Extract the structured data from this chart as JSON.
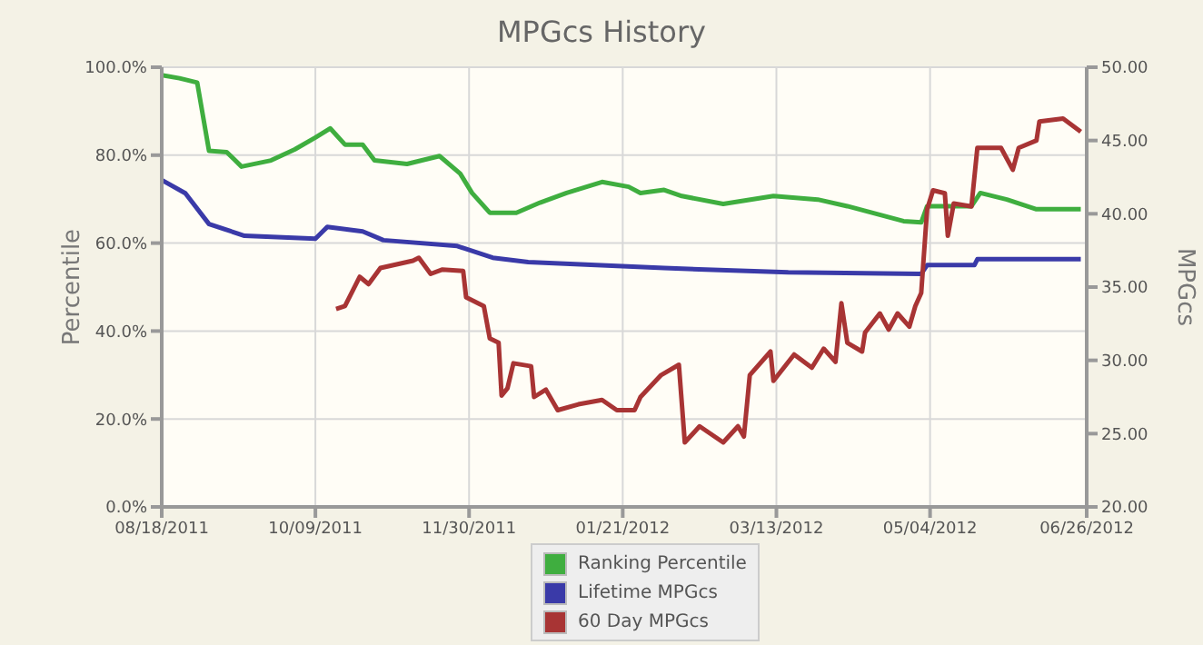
{
  "chart_data": {
    "type": "line",
    "title": "MPGcs History",
    "ylabel": "Percentile",
    "y2label": "MPGcs",
    "xlim": [
      "2011-08-18",
      "2012-06-26"
    ],
    "xticks": [
      {
        "value": "2011-08-18",
        "label": "08/18/2011"
      },
      {
        "value": "2011-10-09",
        "label": "10/09/2011"
      },
      {
        "value": "2011-11-30",
        "label": "11/30/2011"
      },
      {
        "value": "2012-01-21",
        "label": "01/21/2012"
      },
      {
        "value": "2012-03-13",
        "label": "03/13/2012"
      },
      {
        "value": "2012-05-04",
        "label": "05/04/2012"
      },
      {
        "value": "2012-06-26",
        "label": "06/26/2012"
      }
    ],
    "ylim": [
      0,
      100
    ],
    "yticks": [
      {
        "value": 0,
        "label": "0.0%"
      },
      {
        "value": 20,
        "label": "20.0%"
      },
      {
        "value": 40,
        "label": "40.0%"
      },
      {
        "value": 60,
        "label": "60.0%"
      },
      {
        "value": 80,
        "label": "80.0%"
      },
      {
        "value": 100,
        "label": "100.0%"
      }
    ],
    "y2lim": [
      20,
      50
    ],
    "y2ticks": [
      {
        "value": 20,
        "label": "20.00"
      },
      {
        "value": 25,
        "label": "25.00"
      },
      {
        "value": 30,
        "label": "30.00"
      },
      {
        "value": 35,
        "label": "35.00"
      },
      {
        "value": 40,
        "label": "40.00"
      },
      {
        "value": 45,
        "label": "45.00"
      },
      {
        "value": 50,
        "label": "50.00"
      }
    ],
    "grid": true,
    "legend": "bottom",
    "marker": "none",
    "line_style": "solid",
    "series": [
      {
        "name": "Ranking Percentile",
        "color": "#3fae3f",
        "x": [
          "2011-08-18",
          "2011-08-24",
          "2011-08-30",
          "2011-09-03",
          "2011-09-09",
          "2011-09-14",
          "2011-09-24",
          "2011-10-02",
          "2011-10-09",
          "2011-10-14",
          "2011-10-19",
          "2011-10-25",
          "2011-10-29",
          "2011-11-09",
          "2011-11-20",
          "2011-11-27",
          "2011-12-01",
          "2011-12-07",
          "2011-12-16",
          "2011-12-24",
          "2012-01-02",
          "2012-01-14",
          "2012-01-23",
          "2012-01-27",
          "2012-02-04",
          "2012-02-10",
          "2012-02-24",
          "2012-03-12",
          "2012-03-27",
          "2012-04-06",
          "2012-04-25",
          "2012-05-01",
          "2012-05-03",
          "2012-05-18",
          "2012-05-21",
          "2012-05-30",
          "2012-06-09",
          "2012-06-24"
        ],
        "values": [
          98.2,
          97.5,
          96.5,
          81,
          80.7,
          77.4,
          78.8,
          81.3,
          84,
          86.1,
          82.4,
          82.4,
          78.8,
          78,
          79.8,
          75.8,
          71.4,
          66.9,
          66.9,
          69.2,
          71.4,
          73.9,
          72.8,
          71.4,
          72.1,
          70.7,
          68.9,
          70.7,
          69.9,
          68.4,
          65,
          64.7,
          68.4,
          68.4,
          71.4,
          69.9,
          67.7,
          67.7
        ]
      },
      {
        "name": "Lifetime MPGcs",
        "color": "#3a3aa8",
        "axis": "y2",
        "x": [
          "2011-08-18",
          "2011-08-26",
          "2011-09-03",
          "2011-09-15",
          "2011-10-09",
          "2011-10-13",
          "2011-10-25",
          "2011-11-01",
          "2011-11-26",
          "2011-12-08",
          "2011-12-20",
          "2012-02-04",
          "2012-03-17",
          "2012-05-01",
          "2012-05-03",
          "2012-05-19",
          "2012-05-20",
          "2012-06-24"
        ],
        "values": [
          42.3,
          41.4,
          39.3,
          38.5,
          38.3,
          39.1,
          38.8,
          38.2,
          37.8,
          37.0,
          36.7,
          36.3,
          36.0,
          35.9,
          36.5,
          36.5,
          36.9,
          36.9
        ]
      },
      {
        "name": "60 Day MPGcs",
        "color": "#a83434",
        "axis": "y2",
        "x": [
          "2011-10-16",
          "2011-10-19",
          "2011-10-24",
          "2011-10-27",
          "2011-10-31",
          "2011-11-11",
          "2011-11-13",
          "2011-11-17",
          "2011-11-21",
          "2011-11-28",
          "2011-11-29",
          "2011-12-05",
          "2011-12-07",
          "2011-12-10",
          "2011-12-11",
          "2011-12-13",
          "2011-12-15",
          "2011-12-21",
          "2011-12-22",
          "2011-12-26",
          "2011-12-30",
          "2012-01-06",
          "2012-01-14",
          "2012-01-19",
          "2012-01-25",
          "2012-01-27",
          "2012-02-03",
          "2012-02-09",
          "2012-02-11",
          "2012-02-16",
          "2012-02-24",
          "2012-02-29",
          "2012-03-02",
          "2012-03-04",
          "2012-03-11",
          "2012-03-12",
          "2012-03-19",
          "2012-03-25",
          "2012-03-29",
          "2012-04-02",
          "2012-04-04",
          "2012-04-06",
          "2012-04-11",
          "2012-04-12",
          "2012-04-17",
          "2012-04-20",
          "2012-04-23",
          "2012-04-27",
          "2012-04-29",
          "2012-05-01",
          "2012-05-03",
          "2012-05-05",
          "2012-05-09",
          "2012-05-10",
          "2012-05-12",
          "2012-05-18",
          "2012-05-20",
          "2012-05-28",
          "2012-06-01",
          "2012-06-03",
          "2012-06-09",
          "2012-06-10",
          "2012-06-18",
          "2012-06-24"
        ],
        "values": [
          33.5,
          33.7,
          35.7,
          35.2,
          36.3,
          36.8,
          37.0,
          35.9,
          36.2,
          36.1,
          34.3,
          33.7,
          31.5,
          31.2,
          27.6,
          28.1,
          29.8,
          29.6,
          27.5,
          28.0,
          26.6,
          27.0,
          27.3,
          26.6,
          26.6,
          27.5,
          29.0,
          29.7,
          24.4,
          25.5,
          24.4,
          25.5,
          24.8,
          29.0,
          30.6,
          28.6,
          30.4,
          29.5,
          30.8,
          29.9,
          33.9,
          31.2,
          30.6,
          31.9,
          33.2,
          32.1,
          33.2,
          32.3,
          33.7,
          34.6,
          40.3,
          41.6,
          41.4,
          38.5,
          40.7,
          40.5,
          44.5,
          44.5,
          43.0,
          44.5,
          45.0,
          46.3,
          46.5,
          45.6
        ]
      }
    ]
  }
}
